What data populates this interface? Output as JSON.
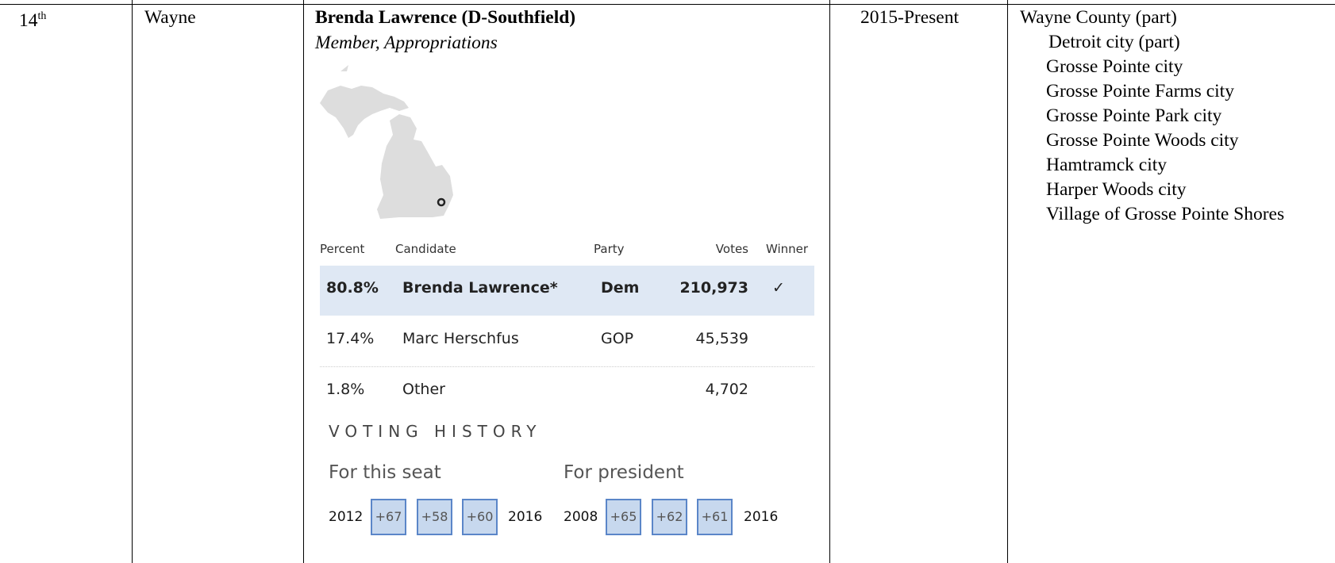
{
  "row": {
    "district": {
      "number": "14",
      "suffix": "th"
    },
    "county": "Wayne",
    "name": "Brenda Lawrence (D-Southfield)",
    "role": "Member, Appropriations",
    "results": {
      "headers": [
        "Percent",
        "Candidate",
        "Party",
        "Votes",
        "Winner"
      ],
      "rows": [
        [
          "80.8%",
          "Brenda Lawrence*",
          "Dem",
          "210,973",
          "✓"
        ],
        [
          "17.4%",
          "Marc Herschfus",
          "GOP",
          "45,539",
          ""
        ],
        [
          "1.8%",
          "Other",
          "",
          "4,702",
          ""
        ]
      ]
    },
    "history": {
      "title": "VOTING HISTORY",
      "seat": {
        "label": "For this seat",
        "start": "2012",
        "end": "2016",
        "margins": [
          "+67",
          "+58",
          "+60"
        ]
      },
      "president": {
        "label": "For president",
        "start": "2008",
        "end": "2016",
        "margins": [
          "+65",
          "+62",
          "+61"
        ]
      }
    },
    "term": "2015-Present",
    "areas": [
      "Wayne County (part)",
      "Detroit city (part)",
      "Grosse Pointe city",
      "Grosse Pointe Farms city",
      "Grosse Pointe Park city",
      "Grosse Pointe Woods city",
      "Hamtramck city",
      "Harper Woods city",
      "Village of Grosse Pointe Shores"
    ]
  }
}
